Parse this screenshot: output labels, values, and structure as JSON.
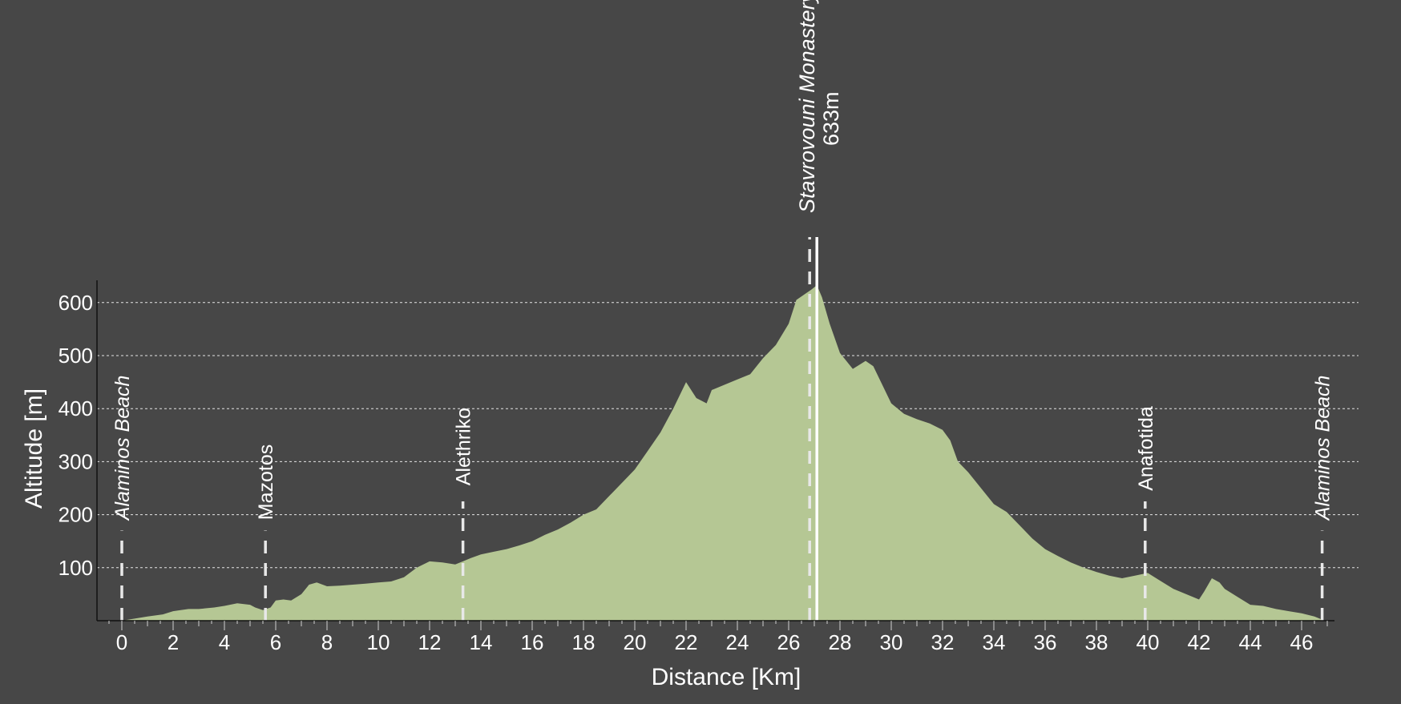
{
  "chart_data": {
    "type": "area",
    "xlabel": "Distance [Km]",
    "ylabel": "Altitude [m]",
    "xlim": [
      -1,
      47.6
    ],
    "ylim": [
      0,
      645
    ],
    "x_ticks": [
      0,
      2,
      4,
      6,
      8,
      10,
      12,
      14,
      16,
      18,
      20,
      22,
      24,
      26,
      28,
      30,
      32,
      34,
      36,
      38,
      40,
      42,
      44,
      46
    ],
    "y_ticks": [
      100,
      200,
      300,
      400,
      500,
      600
    ],
    "grid": "horizontal dashed",
    "fill_color": "#b5c794",
    "background_color": "#474747",
    "profile": {
      "x": [
        0,
        0.5,
        1,
        1.6,
        2,
        2.6,
        3,
        3.6,
        4,
        4.5,
        5,
        5.2,
        5.5,
        5.8,
        6,
        6.3,
        6.6,
        7,
        7.3,
        7.6,
        8,
        8.5,
        9,
        9.5,
        10,
        10.5,
        11,
        11.5,
        12,
        12.5,
        13,
        13.3,
        13.6,
        14,
        14.5,
        15,
        15.5,
        16,
        16.5,
        17,
        17.5,
        18,
        18.5,
        19,
        19.5,
        20,
        20.5,
        21,
        21.5,
        22,
        22.4,
        22.8,
        23,
        23.5,
        24,
        24.5,
        25,
        25.5,
        26,
        26.3,
        26.6,
        26.9,
        27.1,
        27.3,
        27.6,
        28,
        28.5,
        29,
        29.3,
        29.6,
        30,
        30.5,
        31,
        31.5,
        32,
        32.3,
        32.6,
        33,
        33.5,
        34,
        34.5,
        35,
        35.5,
        36,
        36.5,
        37,
        37.5,
        38,
        38.5,
        39,
        39.5,
        40,
        40.5,
        41,
        41.5,
        42,
        42.2,
        42.5,
        42.8,
        43,
        43.5,
        44,
        44.5,
        45,
        45.5,
        46,
        46.5,
        46.9
      ],
      "y": [
        0,
        4,
        8,
        12,
        18,
        22,
        22,
        25,
        28,
        33,
        30,
        25,
        20,
        25,
        38,
        40,
        38,
        50,
        68,
        72,
        65,
        66,
        68,
        70,
        72,
        74,
        82,
        100,
        112,
        110,
        106,
        112,
        118,
        125,
        130,
        135,
        142,
        150,
        162,
        172,
        185,
        200,
        210,
        235,
        260,
        285,
        320,
        355,
        400,
        450,
        420,
        410,
        435,
        445,
        455,
        465,
        495,
        520,
        560,
        605,
        615,
        625,
        633,
        610,
        560,
        505,
        475,
        490,
        480,
        450,
        410,
        390,
        380,
        372,
        360,
        340,
        300,
        280,
        250,
        220,
        205,
        180,
        155,
        135,
        122,
        110,
        100,
        92,
        85,
        80,
        85,
        90,
        75,
        60,
        50,
        40,
        55,
        80,
        72,
        60,
        45,
        30,
        28,
        22,
        18,
        14,
        8,
        0
      ]
    },
    "waypoints": [
      {
        "name": "Alaminos Beach",
        "x": 0,
        "line_top": 170,
        "label_bottom": 190,
        "orient": "up",
        "italic": true
      },
      {
        "name": "Mazotos",
        "x": 5.6,
        "line_top": 170,
        "label_bottom": 190,
        "orient": "up",
        "italic": false
      },
      {
        "name": "Alethriko",
        "x": 13.3,
        "line_top": 225,
        "label_bottom": 255,
        "orient": "up",
        "italic": false
      },
      {
        "name": "Anafotida",
        "x": 39.9,
        "line_top": 225,
        "label_bottom": 245,
        "orient": "up",
        "italic": false
      },
      {
        "name": "Alaminos Beach",
        "x": 46.8,
        "line_top": 170,
        "label_bottom": 190,
        "orient": "up",
        "italic": true
      }
    ],
    "peak": {
      "name": "Stavrovouni Monastery",
      "value_label": "633m",
      "x": 27.1,
      "y": 633
    }
  }
}
